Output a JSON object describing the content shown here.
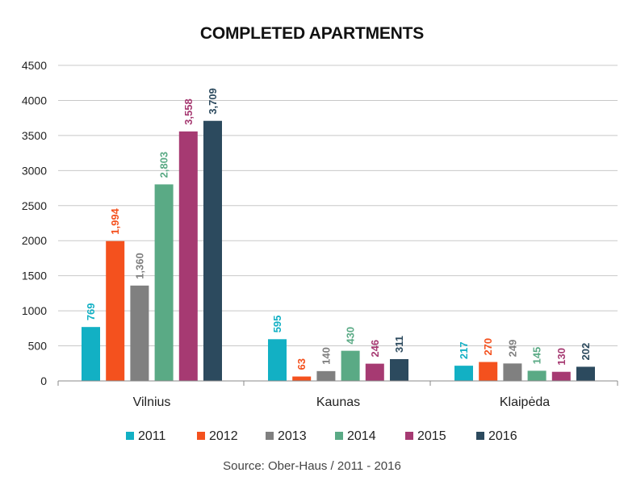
{
  "chart_data": {
    "type": "bar",
    "title": "COMPLETED APARTMENTS",
    "source": "Source: Ober-Haus / 2011 - 2016",
    "categories": [
      "Vilnius",
      "Kaunas",
      "Klaipėda"
    ],
    "ylim": [
      0,
      4500
    ],
    "yticks": [
      0,
      500,
      1000,
      1500,
      2000,
      2500,
      3000,
      3500,
      4000,
      4500
    ],
    "grid": true,
    "legend_position": "bottom",
    "series": [
      {
        "name": "2011",
        "color": "#12b0c4",
        "values": [
          769,
          595,
          217
        ],
        "labels": [
          "769",
          "595",
          "217"
        ]
      },
      {
        "name": "2012",
        "color": "#f4511e",
        "values": [
          1994,
          63,
          270
        ],
        "labels": [
          "1,994",
          "63",
          "270"
        ]
      },
      {
        "name": "2013",
        "color": "#808080",
        "values": [
          1360,
          140,
          249
        ],
        "labels": [
          "1,360",
          "140",
          "249"
        ]
      },
      {
        "name": "2014",
        "color": "#5aaa85",
        "values": [
          2803,
          430,
          145
        ],
        "labels": [
          "2,803",
          "430",
          "145"
        ]
      },
      {
        "name": "2015",
        "color": "#a63a72",
        "values": [
          3558,
          246,
          130
        ],
        "labels": [
          "3,558",
          "246",
          "130"
        ]
      },
      {
        "name": "2016",
        "color": "#2c4a5e",
        "values": [
          3709,
          311,
          202
        ],
        "labels": [
          "3,709",
          "311",
          "202"
        ]
      }
    ]
  }
}
